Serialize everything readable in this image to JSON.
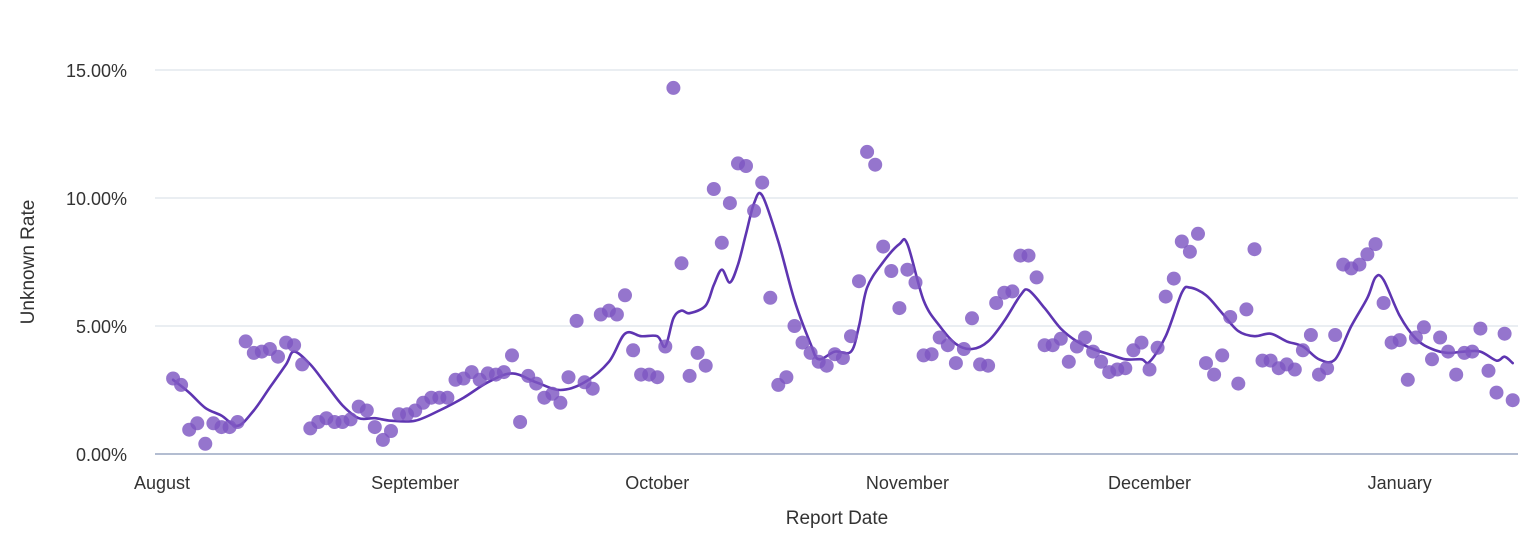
{
  "chart_data": {
    "type": "scatter",
    "xlabel": "Report Date",
    "ylabel": "Unknown Rate",
    "ylim": [
      0,
      16
    ],
    "y_ticks": [
      {
        "value": 0,
        "label": "0.00%"
      },
      {
        "value": 5,
        "label": "5.00%"
      },
      {
        "value": 10,
        "label": "10.00%"
      },
      {
        "value": 15,
        "label": "15.00%"
      }
    ],
    "x_ticks": [
      {
        "date": "Aug 1",
        "label": "August"
      },
      {
        "date": "Sep 1",
        "label": "September"
      },
      {
        "date": "Oct 1",
        "label": "October"
      },
      {
        "date": "Nov 1",
        "label": "November"
      },
      {
        "date": "Dec 1",
        "label": "December"
      },
      {
        "date": "Jan 1",
        "label": "January"
      }
    ],
    "grid": true,
    "colors": {
      "points": "#7e57c2",
      "trend": "#5e35b1"
    },
    "points": [
      {
        "x": "Aug 2",
        "y": 2.95
      },
      {
        "x": "Aug 3",
        "y": 2.7
      },
      {
        "x": "Aug 4",
        "y": 0.95
      },
      {
        "x": "Aug 5",
        "y": 1.2
      },
      {
        "x": "Aug 6",
        "y": 0.4
      },
      {
        "x": "Aug 7",
        "y": 1.2
      },
      {
        "x": "Aug 8",
        "y": 1.05
      },
      {
        "x": "Aug 9",
        "y": 1.05
      },
      {
        "x": "Aug 10",
        "y": 1.25
      },
      {
        "x": "Aug 11",
        "y": 4.4
      },
      {
        "x": "Aug 12",
        "y": 3.95
      },
      {
        "x": "Aug 13",
        "y": 4.0
      },
      {
        "x": "Aug 14",
        "y": 4.1
      },
      {
        "x": "Aug 15",
        "y": 3.8
      },
      {
        "x": "Aug 16",
        "y": 4.35
      },
      {
        "x": "Aug 17",
        "y": 4.25
      },
      {
        "x": "Aug 18",
        "y": 3.5
      },
      {
        "x": "Aug 19",
        "y": 1.0
      },
      {
        "x": "Aug 20",
        "y": 1.25
      },
      {
        "x": "Aug 21",
        "y": 1.4
      },
      {
        "x": "Aug 22",
        "y": 1.25
      },
      {
        "x": "Aug 23",
        "y": 1.25
      },
      {
        "x": "Aug 24",
        "y": 1.35
      },
      {
        "x": "Aug 25",
        "y": 1.85
      },
      {
        "x": "Aug 26",
        "y": 1.7
      },
      {
        "x": "Aug 27",
        "y": 1.05
      },
      {
        "x": "Aug 28",
        "y": 0.55
      },
      {
        "x": "Aug 29",
        "y": 0.9
      },
      {
        "x": "Aug 30",
        "y": 1.55
      },
      {
        "x": "Aug 31",
        "y": 1.55
      },
      {
        "x": "Sep 1",
        "y": 1.7
      },
      {
        "x": "Sep 2",
        "y": 2.0
      },
      {
        "x": "Sep 3",
        "y": 2.2
      },
      {
        "x": "Sep 4",
        "y": 2.2
      },
      {
        "x": "Sep 5",
        "y": 2.2
      },
      {
        "x": "Sep 6",
        "y": 2.9
      },
      {
        "x": "Sep 7",
        "y": 2.95
      },
      {
        "x": "Sep 8",
        "y": 3.2
      },
      {
        "x": "Sep 9",
        "y": 2.9
      },
      {
        "x": "Sep 10",
        "y": 3.15
      },
      {
        "x": "Sep 11",
        "y": 3.1
      },
      {
        "x": "Sep 12",
        "y": 3.2
      },
      {
        "x": "Sep 13",
        "y": 3.85
      },
      {
        "x": "Sep 14",
        "y": 1.25
      },
      {
        "x": "Sep 15",
        "y": 3.05
      },
      {
        "x": "Sep 16",
        "y": 2.75
      },
      {
        "x": "Sep 17",
        "y": 2.2
      },
      {
        "x": "Sep 18",
        "y": 2.35
      },
      {
        "x": "Sep 19",
        "y": 2.0
      },
      {
        "x": "Sep 20",
        "y": 3.0
      },
      {
        "x": "Sep 21",
        "y": 5.2
      },
      {
        "x": "Sep 22",
        "y": 2.8
      },
      {
        "x": "Sep 23",
        "y": 2.55
      },
      {
        "x": "Sep 24",
        "y": 5.45
      },
      {
        "x": "Sep 25",
        "y": 5.6
      },
      {
        "x": "Sep 26",
        "y": 5.45
      },
      {
        "x": "Sep 27",
        "y": 6.2
      },
      {
        "x": "Sep 28",
        "y": 4.05
      },
      {
        "x": "Sep 29",
        "y": 3.1
      },
      {
        "x": "Sep 30",
        "y": 3.1
      },
      {
        "x": "Oct 1",
        "y": 3.0
      },
      {
        "x": "Oct 2",
        "y": 4.2
      },
      {
        "x": "Oct 3",
        "y": 14.3
      },
      {
        "x": "Oct 4",
        "y": 7.45
      },
      {
        "x": "Oct 5",
        "y": 3.05
      },
      {
        "x": "Oct 6",
        "y": 3.95
      },
      {
        "x": "Oct 7",
        "y": 3.45
      },
      {
        "x": "Oct 8",
        "y": 10.35
      },
      {
        "x": "Oct 9",
        "y": 8.25
      },
      {
        "x": "Oct 10",
        "y": 9.8
      },
      {
        "x": "Oct 11",
        "y": 11.35
      },
      {
        "x": "Oct 12",
        "y": 11.25
      },
      {
        "x": "Oct 13",
        "y": 9.5
      },
      {
        "x": "Oct 14",
        "y": 10.6
      },
      {
        "x": "Oct 15",
        "y": 6.1
      },
      {
        "x": "Oct 16",
        "y": 2.7
      },
      {
        "x": "Oct 17",
        "y": 3.0
      },
      {
        "x": "Oct 18",
        "y": 5.0
      },
      {
        "x": "Oct 19",
        "y": 4.35
      },
      {
        "x": "Oct 20",
        "y": 3.95
      },
      {
        "x": "Oct 21",
        "y": 3.6
      },
      {
        "x": "Oct 22",
        "y": 3.45
      },
      {
        "x": "Oct 23",
        "y": 3.9
      },
      {
        "x": "Oct 24",
        "y": 3.75
      },
      {
        "x": "Oct 25",
        "y": 4.6
      },
      {
        "x": "Oct 26",
        "y": 6.75
      },
      {
        "x": "Oct 27",
        "y": 11.8
      },
      {
        "x": "Oct 28",
        "y": 11.3
      },
      {
        "x": "Oct 29",
        "y": 8.1
      },
      {
        "x": "Oct 30",
        "y": 7.15
      },
      {
        "x": "Oct 31",
        "y": 5.7
      },
      {
        "x": "Nov 1",
        "y": 7.2
      },
      {
        "x": "Nov 2",
        "y": 6.7
      },
      {
        "x": "Nov 3",
        "y": 3.85
      },
      {
        "x": "Nov 4",
        "y": 3.9
      },
      {
        "x": "Nov 5",
        "y": 4.55
      },
      {
        "x": "Nov 6",
        "y": 4.25
      },
      {
        "x": "Nov 7",
        "y": 3.55
      },
      {
        "x": "Nov 8",
        "y": 4.1
      },
      {
        "x": "Nov 9",
        "y": 5.3
      },
      {
        "x": "Nov 10",
        "y": 3.5
      },
      {
        "x": "Nov 11",
        "y": 3.45
      },
      {
        "x": "Nov 12",
        "y": 5.9
      },
      {
        "x": "Nov 13",
        "y": 6.3
      },
      {
        "x": "Nov 14",
        "y": 6.35
      },
      {
        "x": "Nov 15",
        "y": 7.75
      },
      {
        "x": "Nov 16",
        "y": 7.75
      },
      {
        "x": "Nov 17",
        "y": 6.9
      },
      {
        "x": "Nov 18",
        "y": 4.25
      },
      {
        "x": "Nov 19",
        "y": 4.25
      },
      {
        "x": "Nov 20",
        "y": 4.5
      },
      {
        "x": "Nov 21",
        "y": 3.6
      },
      {
        "x": "Nov 22",
        "y": 4.2
      },
      {
        "x": "Nov 23",
        "y": 4.55
      },
      {
        "x": "Nov 24",
        "y": 4.0
      },
      {
        "x": "Nov 25",
        "y": 3.6
      },
      {
        "x": "Nov 26",
        "y": 3.2
      },
      {
        "x": "Nov 27",
        "y": 3.3
      },
      {
        "x": "Nov 28",
        "y": 3.35
      },
      {
        "x": "Nov 29",
        "y": 4.05
      },
      {
        "x": "Nov 30",
        "y": 4.35
      },
      {
        "x": "Dec 1",
        "y": 3.3
      },
      {
        "x": "Dec 2",
        "y": 4.15
      },
      {
        "x": "Dec 3",
        "y": 6.15
      },
      {
        "x": "Dec 4",
        "y": 6.85
      },
      {
        "x": "Dec 5",
        "y": 8.3
      },
      {
        "x": "Dec 6",
        "y": 7.9
      },
      {
        "x": "Dec 7",
        "y": 8.6
      },
      {
        "x": "Dec 8",
        "y": 3.55
      },
      {
        "x": "Dec 9",
        "y": 3.1
      },
      {
        "x": "Dec 10",
        "y": 3.85
      },
      {
        "x": "Dec 11",
        "y": 5.35
      },
      {
        "x": "Dec 12",
        "y": 2.75
      },
      {
        "x": "Dec 13",
        "y": 5.65
      },
      {
        "x": "Dec 14",
        "y": 8.0
      },
      {
        "x": "Dec 15",
        "y": 3.65
      },
      {
        "x": "Dec 16",
        "y": 3.65
      },
      {
        "x": "Dec 17",
        "y": 3.35
      },
      {
        "x": "Dec 18",
        "y": 3.5
      },
      {
        "x": "Dec 19",
        "y": 3.3
      },
      {
        "x": "Dec 20",
        "y": 4.05
      },
      {
        "x": "Dec 21",
        "y": 4.65
      },
      {
        "x": "Dec 22",
        "y": 3.1
      },
      {
        "x": "Dec 23",
        "y": 3.35
      },
      {
        "x": "Dec 24",
        "y": 4.65
      },
      {
        "x": "Dec 25",
        "y": 7.4
      },
      {
        "x": "Dec 26",
        "y": 7.25
      },
      {
        "x": "Dec 27",
        "y": 7.4
      },
      {
        "x": "Dec 28",
        "y": 7.8
      },
      {
        "x": "Dec 29",
        "y": 8.2
      },
      {
        "x": "Dec 30",
        "y": 5.9
      },
      {
        "x": "Dec 31",
        "y": 4.35
      },
      {
        "x": "Jan 1",
        "y": 4.45
      },
      {
        "x": "Jan 2",
        "y": 2.9
      },
      {
        "x": "Jan 3",
        "y": 4.55
      },
      {
        "x": "Jan 4",
        "y": 4.95
      },
      {
        "x": "Jan 5",
        "y": 3.7
      },
      {
        "x": "Jan 6",
        "y": 4.55
      },
      {
        "x": "Jan 7",
        "y": 4.0
      },
      {
        "x": "Jan 8",
        "y": 3.1
      },
      {
        "x": "Jan 9",
        "y": 3.95
      },
      {
        "x": "Jan 10",
        "y": 4.0
      },
      {
        "x": "Jan 11",
        "y": 4.9
      },
      {
        "x": "Jan 12",
        "y": 3.25
      },
      {
        "x": "Jan 13",
        "y": 2.4
      },
      {
        "x": "Jan 14",
        "y": 4.7
      },
      {
        "x": "Jan 15",
        "y": 2.1
      }
    ],
    "trend_line": [
      {
        "x": "Aug 2",
        "y": 2.9
      },
      {
        "x": "Aug 4",
        "y": 2.4
      },
      {
        "x": "Aug 6",
        "y": 1.8
      },
      {
        "x": "Aug 8",
        "y": 1.5
      },
      {
        "x": "Aug 10",
        "y": 1.1
      },
      {
        "x": "Aug 12",
        "y": 1.7
      },
      {
        "x": "Aug 14",
        "y": 2.6
      },
      {
        "x": "Aug 16",
        "y": 3.5
      },
      {
        "x": "Aug 17",
        "y": 4.0
      },
      {
        "x": "Aug 19",
        "y": 3.5
      },
      {
        "x": "Aug 21",
        "y": 2.7
      },
      {
        "x": "Aug 23",
        "y": 1.9
      },
      {
        "x": "Aug 25",
        "y": 1.4
      },
      {
        "x": "Aug 27",
        "y": 1.4
      },
      {
        "x": "Aug 29",
        "y": 1.3
      },
      {
        "x": "Sep 1",
        "y": 1.3
      },
      {
        "x": "Sep 4",
        "y": 1.7
      },
      {
        "x": "Sep 7",
        "y": 2.2
      },
      {
        "x": "Sep 10",
        "y": 2.8
      },
      {
        "x": "Sep 13",
        "y": 3.15
      },
      {
        "x": "Sep 16",
        "y": 2.8
      },
      {
        "x": "Sep 19",
        "y": 2.5
      },
      {
        "x": "Sep 22",
        "y": 2.8
      },
      {
        "x": "Sep 25",
        "y": 3.6
      },
      {
        "x": "Sep 27",
        "y": 4.7
      },
      {
        "x": "Sep 29",
        "y": 4.6
      },
      {
        "x": "Oct 1",
        "y": 4.6
      },
      {
        "x": "Oct 2",
        "y": 4.2
      },
      {
        "x": "Oct 3",
        "y": 5.3
      },
      {
        "x": "Oct 4",
        "y": 5.6
      },
      {
        "x": "Oct 5",
        "y": 5.5
      },
      {
        "x": "Oct 7",
        "y": 5.8
      },
      {
        "x": "Oct 8",
        "y": 6.6
      },
      {
        "x": "Oct 9",
        "y": 7.2
      },
      {
        "x": "Oct 10",
        "y": 6.7
      },
      {
        "x": "Oct 11",
        "y": 7.4
      },
      {
        "x": "Oct 12",
        "y": 8.6
      },
      {
        "x": "Oct 13",
        "y": 9.8
      },
      {
        "x": "Oct 14",
        "y": 10.1
      },
      {
        "x": "Oct 16",
        "y": 8.3
      },
      {
        "x": "Oct 18",
        "y": 6.0
      },
      {
        "x": "Oct 20",
        "y": 4.3
      },
      {
        "x": "Oct 21",
        "y": 3.7
      },
      {
        "x": "Oct 23",
        "y": 4.0
      },
      {
        "x": "Oct 25",
        "y": 4.0
      },
      {
        "x": "Oct 26",
        "y": 5.0
      },
      {
        "x": "Oct 27",
        "y": 6.5
      },
      {
        "x": "Oct 29",
        "y": 7.5
      },
      {
        "x": "Oct 31",
        "y": 8.2
      },
      {
        "x": "Nov 1",
        "y": 8.2
      },
      {
        "x": "Nov 3",
        "y": 6.0
      },
      {
        "x": "Nov 5",
        "y": 5.0
      },
      {
        "x": "Nov 7",
        "y": 4.3
      },
      {
        "x": "Nov 9",
        "y": 4.1
      },
      {
        "x": "Nov 11",
        "y": 4.4
      },
      {
        "x": "Nov 13",
        "y": 5.2
      },
      {
        "x": "Nov 15",
        "y": 6.2
      },
      {
        "x": "Nov 16",
        "y": 6.4
      },
      {
        "x": "Nov 18",
        "y": 5.7
      },
      {
        "x": "Nov 20",
        "y": 4.9
      },
      {
        "x": "Nov 22",
        "y": 4.4
      },
      {
        "x": "Nov 24",
        "y": 4.1
      },
      {
        "x": "Nov 26",
        "y": 3.9
      },
      {
        "x": "Nov 28",
        "y": 3.7
      },
      {
        "x": "Nov 30",
        "y": 3.7
      },
      {
        "x": "Dec 1",
        "y": 3.6
      },
      {
        "x": "Dec 3",
        "y": 4.6
      },
      {
        "x": "Dec 5",
        "y": 6.3
      },
      {
        "x": "Dec 6",
        "y": 6.5
      },
      {
        "x": "Dec 8",
        "y": 6.2
      },
      {
        "x": "Dec 10",
        "y": 5.5
      },
      {
        "x": "Dec 12",
        "y": 4.8
      },
      {
        "x": "Dec 14",
        "y": 4.6
      },
      {
        "x": "Dec 16",
        "y": 4.7
      },
      {
        "x": "Dec 18",
        "y": 4.4
      },
      {
        "x": "Dec 20",
        "y": 4.2
      },
      {
        "x": "Dec 22",
        "y": 3.7
      },
      {
        "x": "Dec 24",
        "y": 3.7
      },
      {
        "x": "Dec 26",
        "y": 5.0
      },
      {
        "x": "Dec 28",
        "y": 6.1
      },
      {
        "x": "Dec 29",
        "y": 6.9
      },
      {
        "x": "Dec 30",
        "y": 6.8
      },
      {
        "x": "Jan 1",
        "y": 5.4
      },
      {
        "x": "Jan 3",
        "y": 4.5
      },
      {
        "x": "Jan 5",
        "y": 4.1
      },
      {
        "x": "Jan 7",
        "y": 3.95
      },
      {
        "x": "Jan 9",
        "y": 4.0
      },
      {
        "x": "Jan 11",
        "y": 4.0
      },
      {
        "x": "Jan 13",
        "y": 3.65
      },
      {
        "x": "Jan 14",
        "y": 3.8
      },
      {
        "x": "Jan 15",
        "y": 3.55
      }
    ]
  }
}
